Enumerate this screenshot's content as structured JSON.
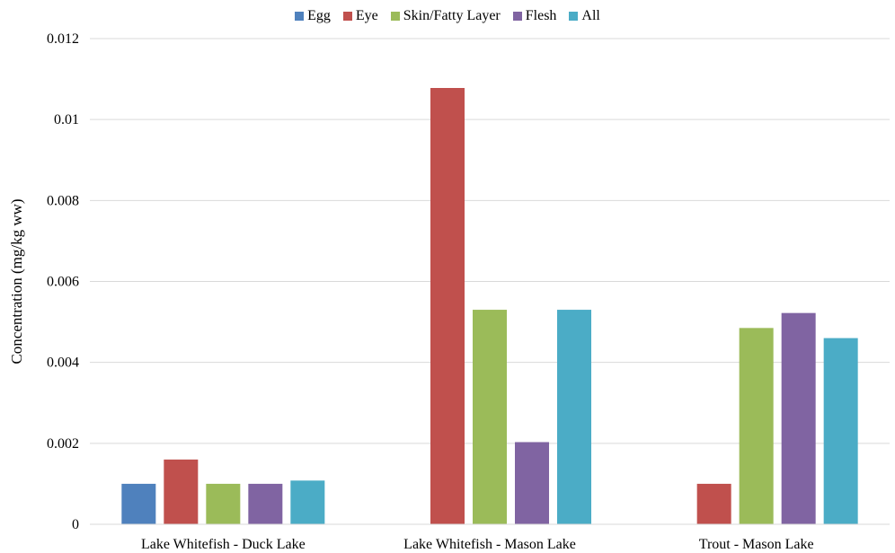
{
  "chart_data": {
    "type": "bar",
    "title": "",
    "xlabel": "",
    "ylabel": "Concentration (mg/kg ww)",
    "ylim": [
      0,
      0.012
    ],
    "yticks": [
      "0",
      "0.002",
      "0.004",
      "0.006",
      "0.008",
      "0.01",
      "0.012"
    ],
    "categories": [
      "Lake Whitefish - Duck Lake",
      "Lake Whitefish - Mason Lake",
      "Trout - Mason Lake"
    ],
    "legend_position": "top-center",
    "grid": true,
    "series": [
      {
        "name": "Egg",
        "color": "#4F81BD",
        "values": [
          0.001,
          null,
          null
        ]
      },
      {
        "name": "Eye",
        "color": "#C0504D",
        "values": [
          0.0016,
          0.01078,
          0.001
        ]
      },
      {
        "name": "Skin/Fatty Layer",
        "color": "#9BBB59",
        "values": [
          0.001,
          0.0053,
          0.00485
        ]
      },
      {
        "name": "Flesh",
        "color": "#8064A2",
        "values": [
          0.001,
          0.00203,
          0.00522
        ]
      },
      {
        "name": "All",
        "color": "#4BACC6",
        "values": [
          0.00108,
          0.0053,
          0.0046
        ]
      }
    ]
  }
}
